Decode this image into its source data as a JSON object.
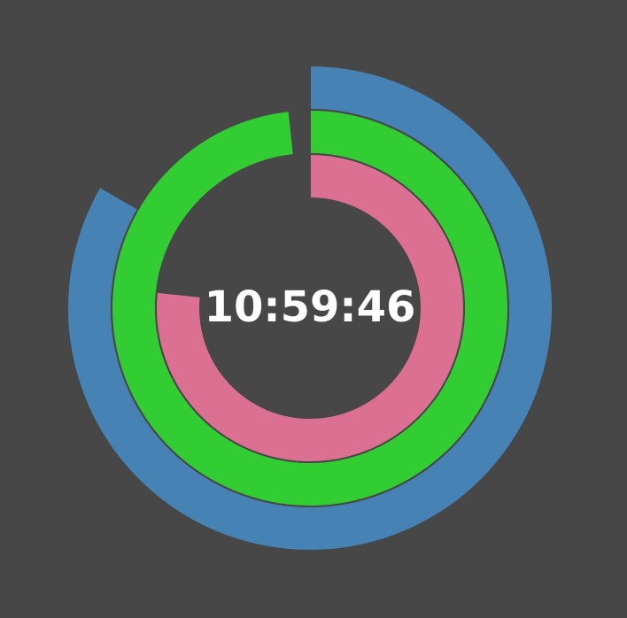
{
  "clock": {
    "time_text": "10:59:46",
    "background": "#474747",
    "rings": [
      {
        "name": "hours",
        "value": 10,
        "max": 12,
        "color": "#4682b4"
      },
      {
        "name": "minutes",
        "value": 59,
        "max": 60,
        "color": "#32cd32"
      },
      {
        "name": "seconds",
        "value": 46,
        "max": 60,
        "color": "#db7093"
      }
    ]
  }
}
